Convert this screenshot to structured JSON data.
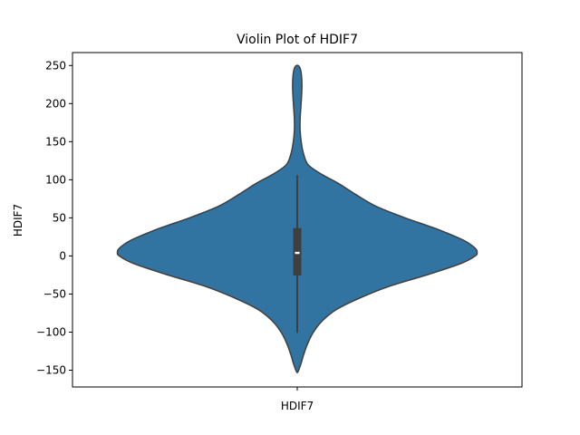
{
  "chart_data": {
    "type": "violin",
    "title": "Violin Plot of HDIF7",
    "xlabel": "",
    "ylabel": "HDIF7",
    "categories": [
      "HDIF7"
    ],
    "ylim": [
      -172,
      267
    ],
    "yticks": [
      -150,
      -100,
      -50,
      0,
      50,
      100,
      150,
      200,
      250
    ],
    "grid": false,
    "color": "#3274a1",
    "edge_color": "#3f3f3f",
    "violin": {
      "min": -152,
      "max": 249,
      "density_profile": [
        {
          "y": 249,
          "w": 0.01
        },
        {
          "y": 240,
          "w": 0.022
        },
        {
          "y": 225,
          "w": 0.026
        },
        {
          "y": 210,
          "w": 0.024
        },
        {
          "y": 195,
          "w": 0.02
        },
        {
          "y": 180,
          "w": 0.016
        },
        {
          "y": 165,
          "w": 0.016
        },
        {
          "y": 150,
          "w": 0.022
        },
        {
          "y": 135,
          "w": 0.034
        },
        {
          "y": 120,
          "w": 0.06
        },
        {
          "y": 108,
          "w": 0.13
        },
        {
          "y": 95,
          "w": 0.23
        },
        {
          "y": 80,
          "w": 0.33
        },
        {
          "y": 65,
          "w": 0.44
        },
        {
          "y": 50,
          "w": 0.6
        },
        {
          "y": 35,
          "w": 0.78
        },
        {
          "y": 20,
          "w": 0.93
        },
        {
          "y": 10,
          "w": 0.99
        },
        {
          "y": 5,
          "w": 1.0
        },
        {
          "y": 0,
          "w": 0.99
        },
        {
          "y": -10,
          "w": 0.91
        },
        {
          "y": -25,
          "w": 0.72
        },
        {
          "y": -40,
          "w": 0.51
        },
        {
          "y": -55,
          "w": 0.35
        },
        {
          "y": -70,
          "w": 0.22
        },
        {
          "y": -85,
          "w": 0.14
        },
        {
          "y": -100,
          "w": 0.09
        },
        {
          "y": -115,
          "w": 0.058
        },
        {
          "y": -130,
          "w": 0.035
        },
        {
          "y": -142,
          "w": 0.02
        },
        {
          "y": -152,
          "w": 0.004
        }
      ]
    },
    "box": {
      "whisker_low": -101,
      "q1": -25,
      "median": 4,
      "q3": 36,
      "whisker_high": 106
    }
  }
}
